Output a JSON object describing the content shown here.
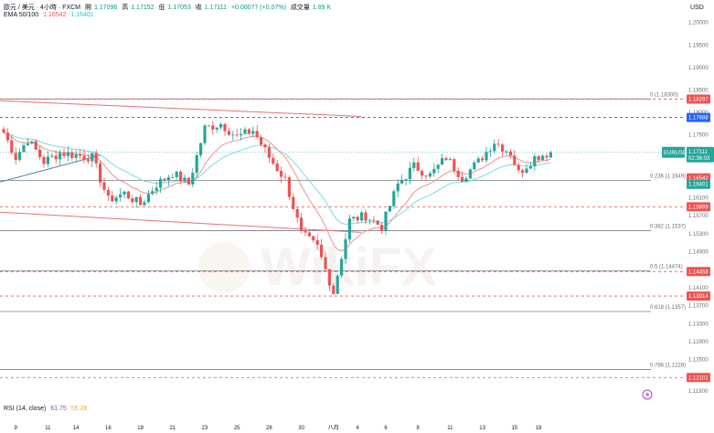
{
  "header": {
    "line1": "歐元 / 美元 · 4小時 · FXCM",
    "open_label": "開",
    "open": "1.17096",
    "high_label": "高",
    "high": "1.17152",
    "low_label": "低",
    "low": "1.17053",
    "close_label": "收",
    "close": "1.17111",
    "change": "+0.00077 (+0.07%)",
    "volume_label": "成交量",
    "volume": "1.89 K",
    "ema_label": "EMA 50/100",
    "ema50": "1.16542",
    "ema100": "1.16401"
  },
  "rsi": {
    "label": "RSI (14, close)",
    "v1": "61.75",
    "v2": "55.28"
  },
  "currency": "USD",
  "watermark": "WikiFX",
  "colors": {
    "up": "#26a69a",
    "down": "#ef5350",
    "ema50": "#ef9a9a",
    "ema100": "#80deea",
    "fib": "#787b86",
    "red_dash": "#ef5350",
    "blue_dash": "#2962ff",
    "trend": "#5b7fa8"
  },
  "chart_data": {
    "type": "candlestick",
    "symbol_tag": "EURUSD",
    "countdown": "02:36:03",
    "ylim": [
      1.1172,
      1.2042
    ],
    "y_ticks": [
      "1.20000",
      "1.19500",
      "1.19000",
      "1.18500",
      "1.18000",
      "1.17500",
      "1.17000",
      "1.16500",
      "1.16100",
      "1.15700",
      "1.15300",
      "1.14900",
      "1.14500",
      "1.14100",
      "1.13700",
      "1.13300",
      "1.12900",
      "1.12500",
      "1.12100",
      "1.11800"
    ],
    "y_tick_values": [
      1.2,
      1.195,
      1.19,
      1.185,
      1.18,
      1.175,
      1.17,
      1.165,
      1.161,
      1.157,
      1.153,
      1.149,
      1.145,
      1.141,
      1.137,
      1.133,
      1.129,
      1.125,
      1.121,
      1.118
    ],
    "x_ticks": [
      "9",
      "11",
      "14",
      "16",
      "18",
      "21",
      "23",
      "25",
      "28",
      "30",
      "八月",
      "4",
      "6",
      "8",
      "11",
      "13",
      "15",
      "18"
    ],
    "x_tick_index": [
      3,
      11,
      18,
      26,
      34,
      42,
      50,
      58,
      66,
      74,
      82,
      88,
      95,
      103,
      111,
      119,
      127,
      133
    ],
    "fib_levels": [
      {
        "label": "0 (1.18300)",
        "value": 1.183
      },
      {
        "label": "0.236 (1.1649)",
        "value": 1.1649
      },
      {
        "label": "0.382 (1.1537)",
        "value": 1.1537
      },
      {
        "label": "0.5 (1.14474)",
        "value": 1.14474
      },
      {
        "label": "0.618 (1.1357)",
        "value": 1.1357
      },
      {
        "label": "0.786 (1.1228)",
        "value": 1.1228
      }
    ],
    "price_tags": [
      {
        "text": "1.18297",
        "value": 1.18297,
        "color": "#ef5350",
        "dash": true
      },
      {
        "text": "1.17888",
        "value": 1.17888,
        "color": "#2962ff",
        "dash": true
      },
      {
        "text": "1.16542",
        "value": 1.16542,
        "color": "#ef5350",
        "dash": false
      },
      {
        "text": "1.16401",
        "value": 1.16401,
        "color": "#26a69a",
        "dash": false
      },
      {
        "text": "1.15899",
        "value": 1.15899,
        "color": "#ef5350",
        "dash": true
      },
      {
        "text": "1.14458",
        "value": 1.14458,
        "color": "#ef5350",
        "dash": true
      },
      {
        "text": "1.13914",
        "value": 1.13914,
        "color": "#ef5350",
        "dash": true
      },
      {
        "text": "1.12101",
        "value": 1.12101,
        "color": "#ef5350",
        "dash": true
      }
    ],
    "last_price": {
      "text": "1.17111",
      "value": 1.17111
    },
    "key_points": [
      [
        0,
        1.1755
      ],
      [
        3,
        1.17
      ],
      [
        6,
        1.174
      ],
      [
        10,
        1.169
      ],
      [
        14,
        1.171
      ],
      [
        18,
        1.1705
      ],
      [
        22,
        1.17
      ],
      [
        26,
        1.1605
      ],
      [
        30,
        1.162
      ],
      [
        34,
        1.1595
      ],
      [
        38,
        1.164
      ],
      [
        42,
        1.1665
      ],
      [
        46,
        1.164
      ],
      [
        50,
        1.1765
      ],
      [
        54,
        1.1775
      ],
      [
        58,
        1.1745
      ],
      [
        62,
        1.176
      ],
      [
        66,
        1.17
      ],
      [
        70,
        1.165
      ],
      [
        74,
        1.153
      ],
      [
        78,
        1.15
      ],
      [
        82,
        1.14
      ],
      [
        86,
        1.156
      ],
      [
        90,
        1.157
      ],
      [
        94,
        1.1545
      ],
      [
        98,
        1.164
      ],
      [
        102,
        1.168
      ],
      [
        106,
        1.166
      ],
      [
        110,
        1.17
      ],
      [
        114,
        1.1655
      ],
      [
        118,
        1.169
      ],
      [
        122,
        1.1735
      ],
      [
        126,
        1.171
      ],
      [
        128,
        1.1665
      ],
      [
        132,
        1.17
      ],
      [
        136,
        1.1711
      ]
    ],
    "candle_count": 137
  }
}
